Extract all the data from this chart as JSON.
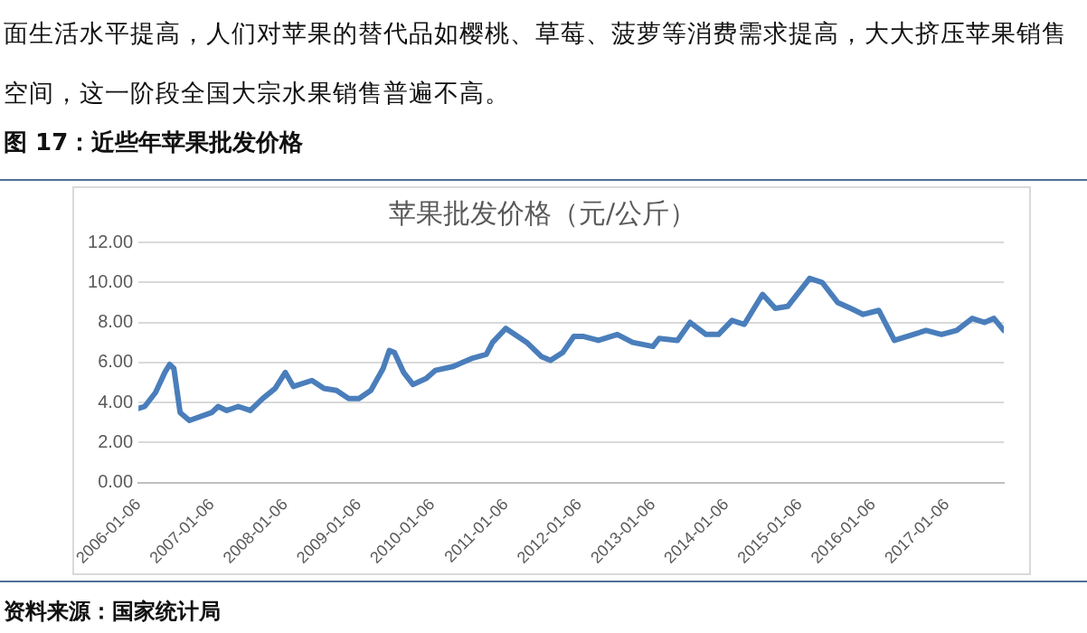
{
  "chart_data": {
    "type": "line",
    "title": "苹果批发价格（元/公斤）",
    "annotations": [
      "面生活水平提高，人们对苹果的替代品如樱桃、草莓、菠萝等消费需求提高，大大挤压苹果销售空间，这一阶段全国大宗水果销售普遍不高。",
      "图 17：近些年苹果批发价格",
      "资料来源：国家统计局"
    ],
    "x": [
      "2006-01-06",
      "2006-02-06",
      "2006-04-01",
      "2006-05-17",
      "2006-06-10",
      "2006-07-01",
      "2006-08-01",
      "2006-09-16",
      "2007-01-06",
      "2007-02-06",
      "2007-03-21",
      "2007-05-17",
      "2007-07-16",
      "2007-09-16",
      "2007-11-16",
      "2008-01-06",
      "2008-02-15",
      "2008-05-17",
      "2008-07-16",
      "2008-09-16",
      "2008-11-16",
      "2009-01-06",
      "2009-03-06",
      "2009-05-06",
      "2009-06-06",
      "2009-07-01",
      "2009-08-16",
      "2009-10-01",
      "2009-12-06",
      "2010-01-20",
      "2010-04-20",
      "2010-07-20",
      "2010-10-01",
      "2010-11-01",
      "2011-01-06",
      "2011-03-06",
      "2011-04-20",
      "2011-07-01",
      "2011-08-16",
      "2011-10-16",
      "2011-12-10",
      "2012-01-28",
      "2012-04-10",
      "2012-07-13",
      "2012-09-27",
      "2013-01-06",
      "2013-02-06",
      "2013-05-08",
      "2013-07-10",
      "2013-09-27",
      "2013-11-28",
      "2014-02-03",
      "2014-04-05",
      "2014-07-05",
      "2014-09-06",
      "2014-11-07",
      "2015-02-24",
      "2015-04-27",
      "2015-07-13",
      "2015-09-16",
      "2015-11-17",
      "2016-02-03",
      "2016-04-20",
      "2016-06-21",
      "2016-09-25",
      "2016-12-10",
      "2017-02-24",
      "2017-05-12",
      "2017-07-13",
      "2017-08-28",
      "2017-10-16"
    ],
    "series": [
      {
        "color": "#4a7ebb",
        "values": [
          3.7,
          3.8,
          4.5,
          5.5,
          5.9,
          5.7,
          3.5,
          3.1,
          3.5,
          3.8,
          3.6,
          3.8,
          3.6,
          4.2,
          4.7,
          5.5,
          4.8,
          5.1,
          4.7,
          4.6,
          4.2,
          4.2,
          4.6,
          5.7,
          6.6,
          6.5,
          5.5,
          4.9,
          5.2,
          5.6,
          5.8,
          6.2,
          6.4,
          7.0,
          7.7,
          7.3,
          7.0,
          6.3,
          6.1,
          6.5,
          7.3,
          7.3,
          7.1,
          7.4,
          7.0,
          6.8,
          7.2,
          7.1,
          8.0,
          7.4,
          7.4,
          8.1,
          7.9,
          9.4,
          8.7,
          8.8,
          10.2,
          10.0,
          9.0,
          8.7,
          8.4,
          8.6,
          7.1,
          7.3,
          7.6,
          7.4,
          7.6,
          8.2,
          8.0,
          8.2,
          7.6
        ]
      }
    ],
    "xlim": [
      "2006-01-06",
      "2017-10-16"
    ],
    "xticks": [
      "2006-01-06",
      "2007-01-06",
      "2008-01-06",
      "2009-01-06",
      "2010-01-06",
      "2011-01-06",
      "2012-01-06",
      "2013-01-06",
      "2014-01-06",
      "2015-01-06",
      "2016-01-06",
      "2017-01-06"
    ],
    "ylim": [
      0,
      12
    ],
    "yticks": [
      {
        "value": 0,
        "label": "0.00"
      },
      {
        "value": 2,
        "label": "2.00"
      },
      {
        "value": 4,
        "label": "4.00"
      },
      {
        "value": 6,
        "label": "6.00"
      },
      {
        "value": 8,
        "label": "8.00"
      },
      {
        "value": 10,
        "label": "10.00"
      },
      {
        "value": 12,
        "label": "12.00"
      }
    ],
    "grid": "y",
    "legend": false,
    "marker": "none",
    "line_style": "solid"
  }
}
